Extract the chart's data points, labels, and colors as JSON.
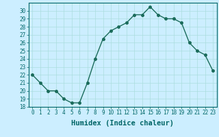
{
  "x": [
    0,
    1,
    2,
    3,
    4,
    5,
    6,
    7,
    8,
    9,
    10,
    11,
    12,
    13,
    14,
    15,
    16,
    17,
    18,
    19,
    20,
    21,
    22,
    23
  ],
  "y": [
    22,
    21,
    20,
    20,
    19,
    18.5,
    18.5,
    21,
    24,
    26.5,
    27.5,
    28,
    28.5,
    29.5,
    29.5,
    30.5,
    29.5,
    29,
    29,
    28.5,
    26,
    25,
    24.5,
    22.5
  ],
  "line_color": "#1a6b5a",
  "marker": "o",
  "marker_size": 2.5,
  "bg_color": "#cceeff",
  "grid_color": "#aadddd",
  "xlabel": "Humidex (Indice chaleur)",
  "ylim": [
    18,
    31
  ],
  "xlim": [
    -0.5,
    23.5
  ],
  "yticks": [
    18,
    19,
    20,
    21,
    22,
    23,
    24,
    25,
    26,
    27,
    28,
    29,
    30
  ],
  "xticks": [
    0,
    1,
    2,
    3,
    4,
    5,
    6,
    7,
    8,
    9,
    10,
    11,
    12,
    13,
    14,
    15,
    16,
    17,
    18,
    19,
    20,
    21,
    22,
    23
  ],
  "xtick_labels": [
    "0",
    "1",
    "2",
    "3",
    "4",
    "5",
    "6",
    "7",
    "8",
    "9",
    "10",
    "11",
    "12",
    "13",
    "14",
    "15",
    "16",
    "17",
    "18",
    "19",
    "20",
    "21",
    "22",
    "23"
  ],
  "font_color": "#006666",
  "axis_color": "#006666",
  "tick_fontsize": 5.5,
  "label_fontsize": 7.5
}
